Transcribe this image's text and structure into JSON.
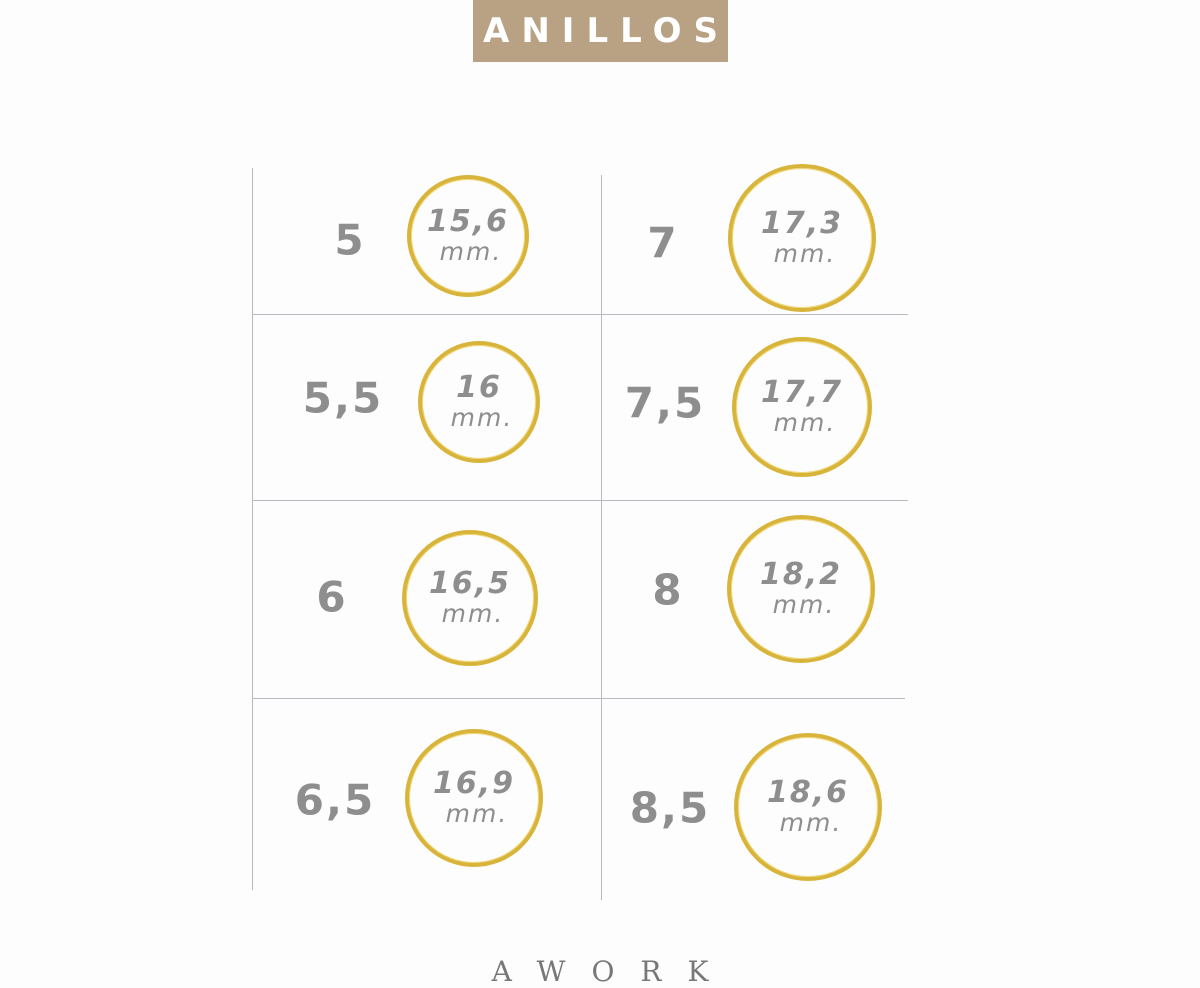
{
  "title": "ANILLOS",
  "footer": "AWORK",
  "colors": {
    "banner": "#b9a184",
    "ring": "#d9b43a",
    "text": "#8e8e8e"
  },
  "unit": "mm.",
  "sizes": [
    {
      "size": "5",
      "diameter": "15,6"
    },
    {
      "size": "5,5",
      "diameter": "16"
    },
    {
      "size": "6",
      "diameter": "16,5"
    },
    {
      "size": "6,5",
      "diameter": "16,9"
    },
    {
      "size": "7",
      "diameter": "17,3"
    },
    {
      "size": "7,5",
      "diameter": "17,7"
    },
    {
      "size": "8",
      "diameter": "18,2"
    },
    {
      "size": "8,5",
      "diameter": "18,6"
    }
  ]
}
